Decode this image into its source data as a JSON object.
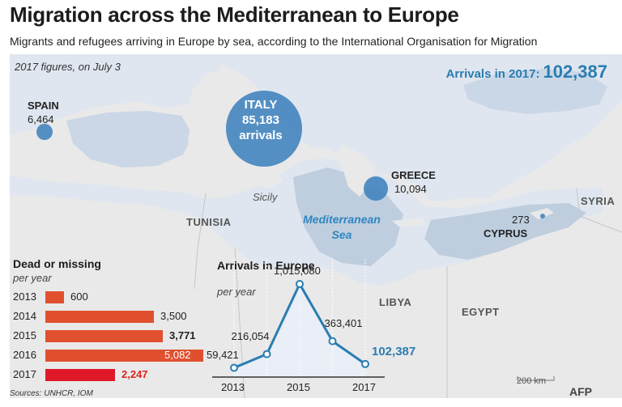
{
  "header": {
    "title": "Migration across the Mediterranean to Europe",
    "subtitle": "Migrants and refugees arriving in Europe by sea, according to the International Organisation for Migration"
  },
  "map": {
    "note": "2017 figures, on July 3",
    "arrivals_2017_label": "Arrivals in 2017:",
    "arrivals_2017_value": "102,387",
    "countries": {
      "spain": {
        "name": "SPAIN",
        "value": "6,464"
      },
      "italy": {
        "name": "ITALY",
        "value": "85,183",
        "unit": "arrivals"
      },
      "greece": {
        "name": "GREECE",
        "value": "10,094"
      },
      "cyprus": {
        "name": "CYPRUS",
        "value": "273"
      }
    },
    "places": {
      "sicily": "Sicily",
      "tunisia": "TUNISIA",
      "libya": "LIBYA",
      "egypt": "EGYPT",
      "syria": "SYRIA",
      "sea_line1": "Mediterranean",
      "sea_line2": "Sea"
    },
    "scale_label": "200 km",
    "colors": {
      "sea_light": "#dfe6ef",
      "sea_deep": "#b9c9dc",
      "land": "#e9e9e9",
      "bubble": "#3f82bd"
    }
  },
  "dead_missing": {
    "title": "Dead or missing",
    "subtitle": "per year",
    "rows": [
      {
        "year": "2013",
        "value": 600,
        "label": "600"
      },
      {
        "year": "2014",
        "value": 3500,
        "label": "3,500"
      },
      {
        "year": "2015",
        "value": 3771,
        "label": "3,771"
      },
      {
        "year": "2016",
        "value": 5082,
        "label": "5,082"
      },
      {
        "year": "2017",
        "value": 2247,
        "label": "2,247"
      }
    ],
    "colors": {
      "bar": "#e0502f",
      "highlight_bar": "#e0192a",
      "highlight_text": "#d9261c"
    }
  },
  "chart_data": {
    "type": "line",
    "title": "Arrivals in Europe",
    "subtitle": "per year",
    "x": [
      2013,
      2014,
      2015,
      2016,
      2017
    ],
    "series": [
      {
        "values": [
          59421,
          216054,
          1015080,
          363401,
          102387
        ]
      }
    ],
    "point_labels": [
      "59,421",
      "216,054",
      "1,015,080",
      "363,401",
      "102,387"
    ],
    "x_tick_labels": [
      "2013",
      "2015",
      "2017"
    ],
    "ylim": [
      0,
      1015080
    ],
    "colors": {
      "line": "#2a7db1",
      "fill": "#e9eef7"
    }
  },
  "footer": {
    "sources": "Sources: UNHCR, IOM",
    "logo_text": "AFP"
  }
}
